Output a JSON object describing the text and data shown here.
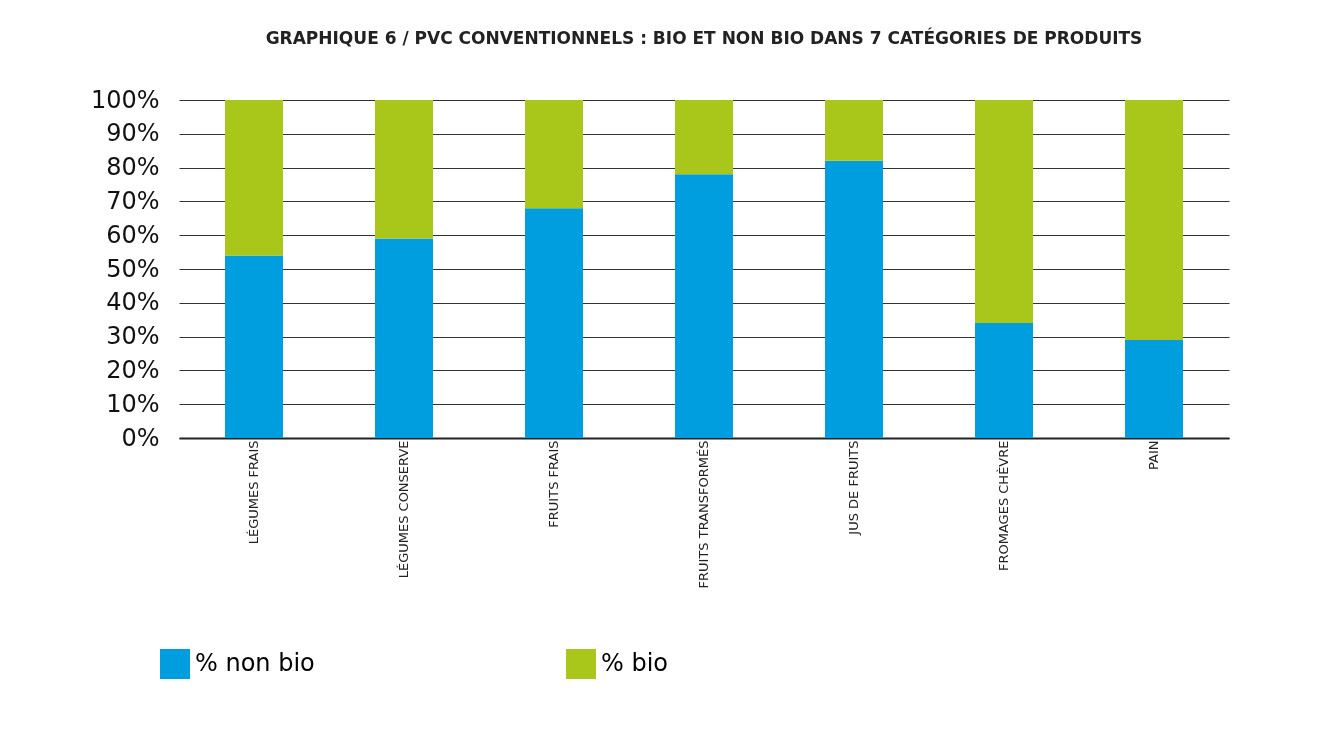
{
  "chart_data": {
    "type": "bar",
    "stacked": true,
    "title": "GRAPHIQUE 6 / PVC CONVENTIONNELS : BIO ET NON BIO DANS 7 CATÉGORIES DE PRODUITS",
    "categories": [
      "LÉGUMES FRAIS",
      "LÉGUMES CONSERVE",
      "FRUITS FRAIS",
      "FRUITS TRANSFORMÉS",
      "JUS DE FRUITS",
      "FROMAGES CHÈVRE",
      "PAIN"
    ],
    "series": [
      {
        "name": "% non bio",
        "color": "#009ddf",
        "values": [
          54,
          59,
          68,
          78,
          82,
          34,
          29
        ]
      },
      {
        "name": "% bio",
        "color": "#a9c71b",
        "values": [
          46,
          41,
          32,
          22,
          18,
          66,
          71
        ]
      }
    ],
    "ylim": [
      0,
      100
    ],
    "yticks": [
      {
        "value": 0,
        "label": "0%"
      },
      {
        "value": 10,
        "label": "10%"
      },
      {
        "value": 20,
        "label": "20%"
      },
      {
        "value": 30,
        "label": "30%"
      },
      {
        "value": 40,
        "label": "40%"
      },
      {
        "value": 50,
        "label": "50%"
      },
      {
        "value": 60,
        "label": "60%"
      },
      {
        "value": 70,
        "label": "70%"
      },
      {
        "value": 80,
        "label": "80%"
      },
      {
        "value": 90,
        "label": "90%"
      },
      {
        "value": 100,
        "label": "100%"
      }
    ],
    "grid": "y",
    "legend": "bottom left"
  }
}
